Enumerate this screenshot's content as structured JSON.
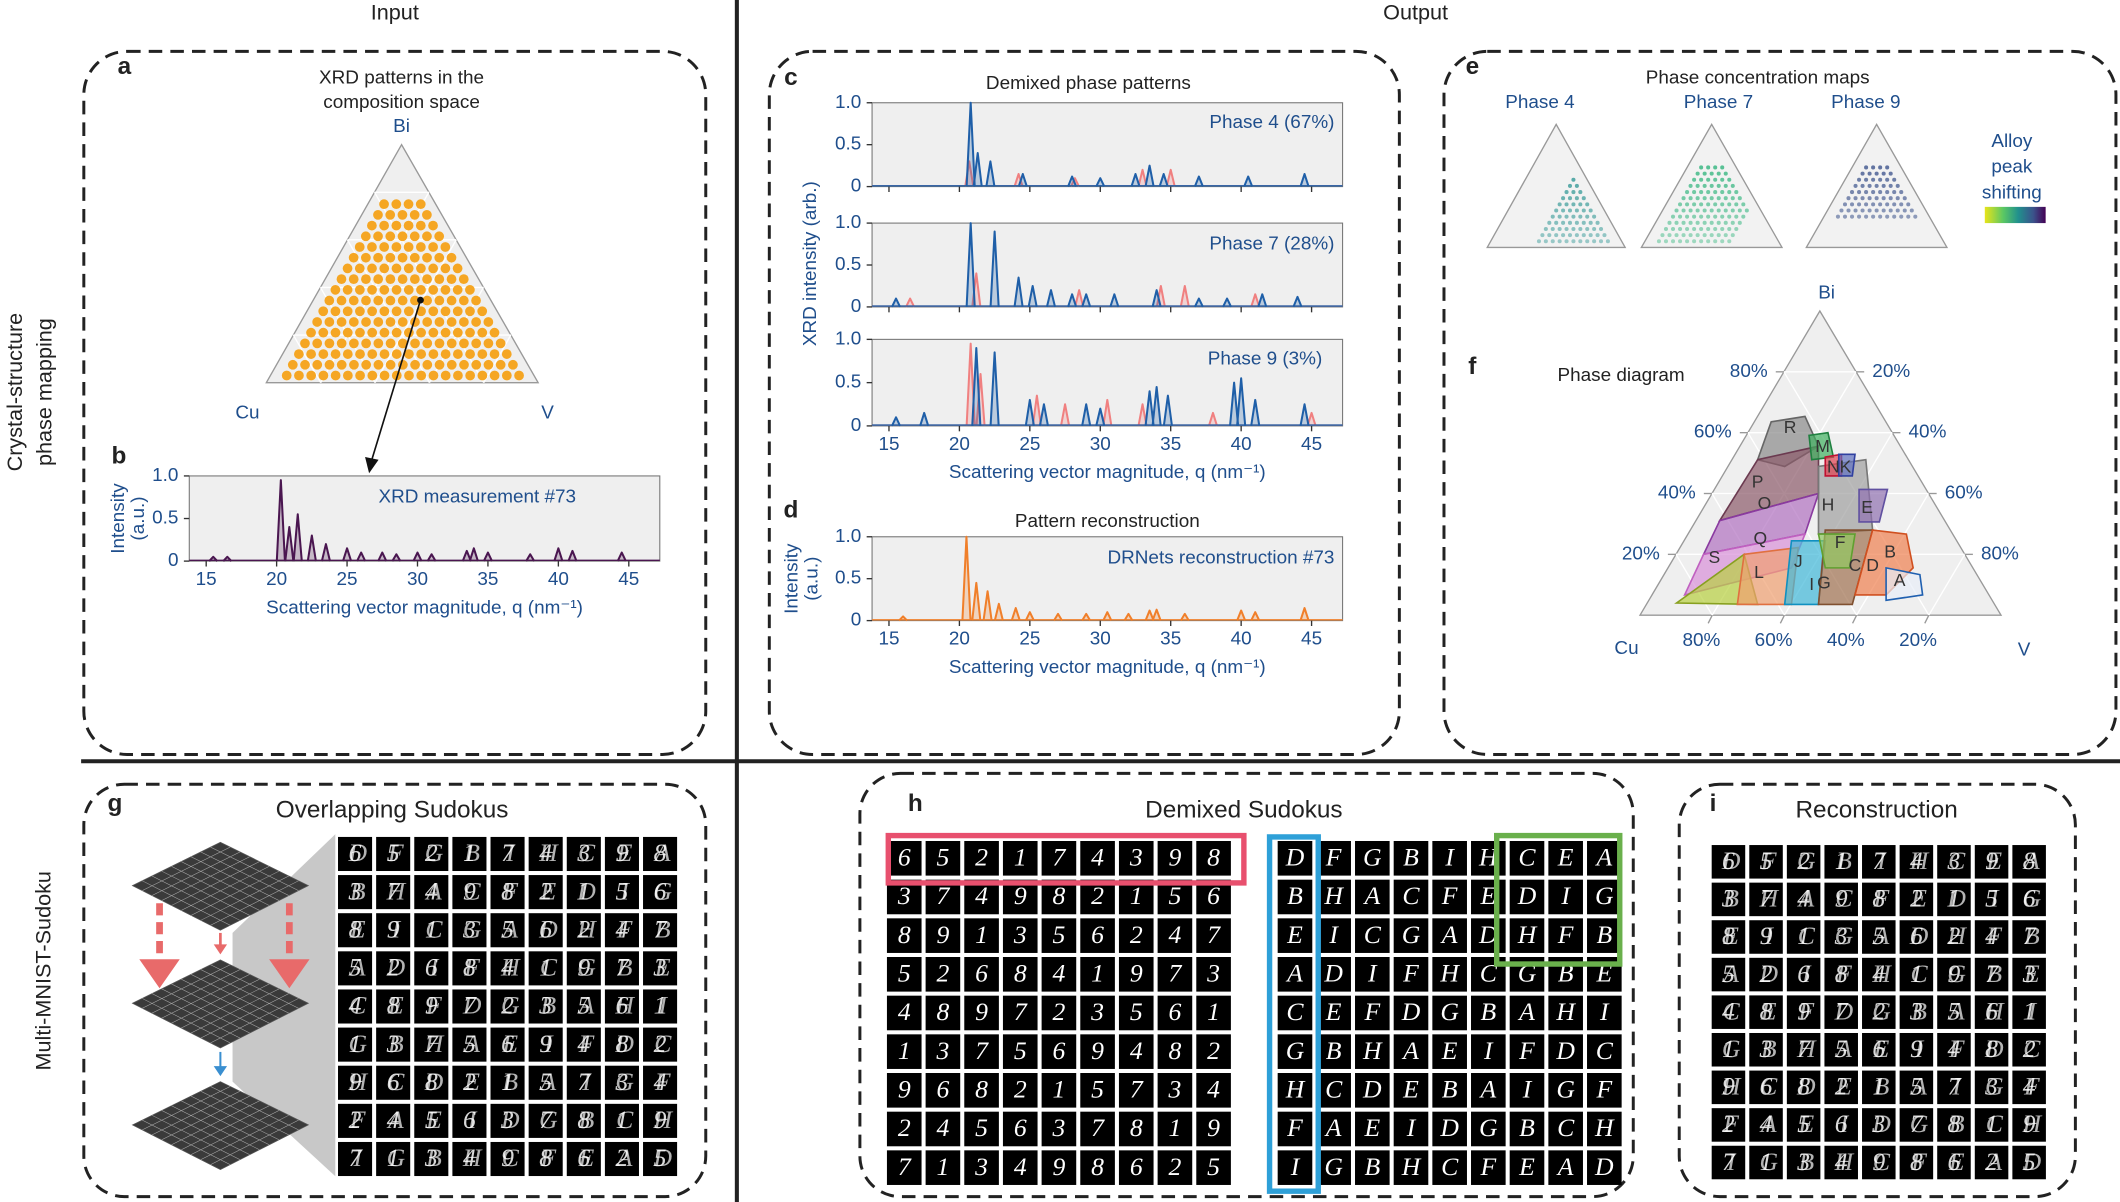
{
  "headers": {
    "input": "Input",
    "output": "Output"
  },
  "row_labels": {
    "phase_mapping": [
      "Crystal-structure",
      "phase mapping"
    ],
    "sudoku": "Multi-MNIST-Sudoku"
  },
  "panel_a": {
    "label": "a",
    "title": [
      "XRD patterns in the",
      "composition space"
    ],
    "vertices": {
      "top": "Bi",
      "left": "Cu",
      "right": "V"
    }
  },
  "panel_b": {
    "label": "b"
  },
  "panel_c": {
    "label": "c",
    "title": "Demixed phase patterns",
    "ylabel": "XRD intensity (arb.)"
  },
  "panel_d": {
    "label": "d",
    "title": "Pattern reconstruction"
  },
  "panel_e": {
    "label": "e",
    "title": "Phase concentration maps",
    "maps": [
      "Phase 4",
      "Phase 7",
      "Phase 9"
    ],
    "colorbar_label": [
      "Alloy",
      "peak",
      "shifting"
    ]
  },
  "panel_f": {
    "label": "f",
    "title": "Phase diagram",
    "vertices": {
      "top": "Bi",
      "left": "Cu",
      "right": "V"
    },
    "left_ticks": [
      {
        "value": 80,
        "label": "80%"
      },
      {
        "value": 60,
        "label": "60%"
      },
      {
        "value": 40,
        "label": "40%"
      },
      {
        "value": 20,
        "label": "20%"
      }
    ],
    "right_ticks": [
      {
        "value": 20,
        "label": "20%"
      },
      {
        "value": 40,
        "label": "40%"
      },
      {
        "value": 60,
        "label": "60%"
      },
      {
        "value": 80,
        "label": "80%"
      }
    ],
    "bottom_ticks": [
      {
        "value": 80,
        "label": "80%"
      },
      {
        "value": 60,
        "label": "60%"
      },
      {
        "value": 40,
        "label": "40%"
      },
      {
        "value": 20,
        "label": "20%"
      }
    ],
    "phases": [
      "R",
      "M",
      "N",
      "K",
      "P",
      "O",
      "H",
      "E",
      "Q",
      "F",
      "S",
      "C",
      "D",
      "B",
      "A",
      "L",
      "J",
      "I",
      "G"
    ]
  },
  "panel_g": {
    "label": "g",
    "title": "Overlapping Sudokus"
  },
  "panel_h": {
    "label": "h",
    "title": "Demixed Sudokus",
    "digits": [
      [
        6,
        5,
        2,
        1,
        7,
        4,
        3,
        9,
        8
      ],
      [
        3,
        7,
        4,
        9,
        8,
        2,
        1,
        5,
        6
      ],
      [
        8,
        9,
        1,
        3,
        5,
        6,
        2,
        4,
        7
      ],
      [
        5,
        2,
        6,
        8,
        4,
        1,
        9,
        7,
        3
      ],
      [
        4,
        8,
        9,
        7,
        2,
        3,
        5,
        6,
        1
      ],
      [
        1,
        3,
        7,
        5,
        6,
        9,
        4,
        8,
        2
      ],
      [
        9,
        6,
        8,
        2,
        1,
        5,
        7,
        3,
        4
      ],
      [
        2,
        4,
        5,
        6,
        3,
        7,
        8,
        1,
        9
      ],
      [
        7,
        1,
        3,
        4,
        9,
        8,
        6,
        2,
        5
      ]
    ],
    "letters": [
      [
        "D",
        "F",
        "G",
        "B",
        "I",
        "H",
        "C",
        "E",
        "A"
      ],
      [
        "B",
        "H",
        "A",
        "C",
        "F",
        "E",
        "D",
        "I",
        "G"
      ],
      [
        "E",
        "I",
        "C",
        "G",
        "A",
        "D",
        "H",
        "F",
        "B"
      ],
      [
        "A",
        "D",
        "I",
        "F",
        "H",
        "C",
        "G",
        "B",
        "E"
      ],
      [
        "C",
        "E",
        "F",
        "D",
        "G",
        "B",
        "A",
        "H",
        "I"
      ],
      [
        "G",
        "B",
        "H",
        "A",
        "E",
        "I",
        "F",
        "D",
        "C"
      ],
      [
        "H",
        "C",
        "D",
        "E",
        "B",
        "A",
        "I",
        "G",
        "F"
      ],
      [
        "F",
        "A",
        "E",
        "I",
        "D",
        "G",
        "B",
        "C",
        "H"
      ],
      [
        "I",
        "G",
        "B",
        "H",
        "C",
        "F",
        "E",
        "A",
        "D"
      ]
    ]
  },
  "panel_i": {
    "label": "i",
    "title": "Reconstruction"
  },
  "chart_data": [
    {
      "type": "spectrum",
      "annotation": "XRD measurement #73",
      "ylabel": [
        "Intensity",
        "(a.u.)"
      ],
      "xlabel": "Scattering vector magnitude, q (nm⁻¹)",
      "xlim": [
        13.8,
        47.2
      ],
      "ylim": [
        0,
        1
      ],
      "xticks": [
        15,
        20,
        25,
        30,
        35,
        40,
        45
      ],
      "yticks": [
        0,
        0.5,
        {
          "value": 1,
          "label": "1.0"
        }
      ],
      "series": [
        {
          "color": "#4a1650",
          "x": [
            15.5,
            16.5,
            20.3,
            20.9,
            21.5,
            22.5,
            23.5,
            25,
            26,
            27.5,
            28.5,
            30,
            31,
            33.5,
            34,
            35,
            38,
            40,
            41,
            44.5
          ],
          "values": [
            0.05,
            0.05,
            0.95,
            0.4,
            0.55,
            0.3,
            0.2,
            0.15,
            0.1,
            0.1,
            0.08,
            0.1,
            0.08,
            0.12,
            0.15,
            0.1,
            0.08,
            0.15,
            0.12,
            0.1
          ]
        }
      ]
    },
    {
      "type": "spectrum",
      "annotation": "Phase 4 (67%)",
      "xlim": [
        13.8,
        47.2
      ],
      "ylim": [
        0,
        1
      ],
      "xticks": [
        15,
        20,
        25,
        30,
        35,
        40,
        45
      ],
      "yticks": [
        0,
        0.5,
        {
          "value": 1,
          "label": "1.0"
        }
      ],
      "series": [
        {
          "color": "#f08080",
          "x": [
            20.7,
            24.2,
            28.2,
            33,
            35
          ],
          "values": [
            0.3,
            0.15,
            0.1,
            0.2,
            0.2
          ]
        },
        {
          "color": "#1f5fa8",
          "x": [
            20.8,
            21.3,
            22.2,
            24.5,
            28,
            30,
            32.5,
            33.5,
            34.5,
            37,
            40.5,
            44.5
          ],
          "values": [
            1.0,
            0.4,
            0.3,
            0.15,
            0.12,
            0.1,
            0.15,
            0.25,
            0.15,
            0.12,
            0.12,
            0.15
          ]
        }
      ]
    },
    {
      "type": "spectrum",
      "annotation": "Phase 7 (28%)",
      "xlim": [
        13.8,
        47.2
      ],
      "ylim": [
        0,
        1
      ],
      "xticks": [
        15,
        20,
        25,
        30,
        35,
        40,
        45
      ],
      "yticks": [
        0,
        0.5,
        {
          "value": 1,
          "label": "1.0"
        }
      ],
      "series": [
        {
          "color": "#f08080",
          "x": [
            16.5,
            21.2,
            28.5,
            34.3,
            36,
            41
          ],
          "values": [
            0.1,
            0.4,
            0.2,
            0.25,
            0.25,
            0.15
          ]
        },
        {
          "color": "#1f5fa8",
          "x": [
            15.5,
            20.8,
            22.5,
            24.2,
            25.2,
            26.5,
            28,
            29,
            31,
            34,
            37,
            39,
            41.5,
            44
          ],
          "values": [
            0.1,
            1.0,
            0.9,
            0.35,
            0.25,
            0.2,
            0.15,
            0.15,
            0.15,
            0.2,
            0.1,
            0.1,
            0.15,
            0.12
          ]
        }
      ]
    },
    {
      "type": "spectrum",
      "annotation": "Phase 9 (3%)",
      "xlabel": "Scattering vector magnitude, q (nm⁻¹)",
      "xlim": [
        13.8,
        47.2
      ],
      "ylim": [
        0,
        1
      ],
      "xticks": [
        15,
        20,
        25,
        30,
        35,
        40,
        45
      ],
      "yticks": [
        0,
        0.5,
        {
          "value": 1,
          "label": "1.0"
        }
      ],
      "series": [
        {
          "color": "#f08080",
          "x": [
            20.8,
            21.5,
            25.5,
            27.5,
            30.5,
            33,
            38,
            45
          ],
          "values": [
            0.95,
            0.6,
            0.35,
            0.25,
            0.3,
            0.25,
            0.15,
            0.15
          ]
        },
        {
          "color": "#1f5fa8",
          "x": [
            15.5,
            17.5,
            21.2,
            22.5,
            25,
            26,
            29,
            30,
            33.5,
            34,
            34.8,
            39.5,
            40,
            41,
            44.5
          ],
          "values": [
            0.1,
            0.15,
            0.9,
            0.85,
            0.3,
            0.25,
            0.25,
            0.2,
            0.4,
            0.45,
            0.35,
            0.5,
            0.55,
            0.3,
            0.25
          ]
        }
      ]
    },
    {
      "type": "spectrum",
      "annotation": "DRNets reconstruction #73",
      "ylabel": [
        "Intensity",
        "(a.u.)"
      ],
      "xlabel": "Scattering vector magnitude, q (nm⁻¹)",
      "xlim": [
        13.8,
        47.2
      ],
      "ylim": [
        0,
        1
      ],
      "xticks": [
        15,
        20,
        25,
        30,
        35,
        40,
        45
      ],
      "yticks": [
        0,
        0.5,
        {
          "value": 1,
          "label": "1.0"
        }
      ],
      "series": [
        {
          "color": "#f07f2a",
          "x": [
            16,
            20.5,
            21.2,
            22,
            22.8,
            24,
            25,
            27,
            29,
            30.5,
            32,
            33.5,
            34,
            36,
            40,
            41,
            44.5
          ],
          "values": [
            0.05,
            1.0,
            0.45,
            0.35,
            0.2,
            0.15,
            0.1,
            0.08,
            0.08,
            0.1,
            0.08,
            0.12,
            0.13,
            0.08,
            0.12,
            0.1,
            0.15
          ]
        }
      ]
    }
  ]
}
